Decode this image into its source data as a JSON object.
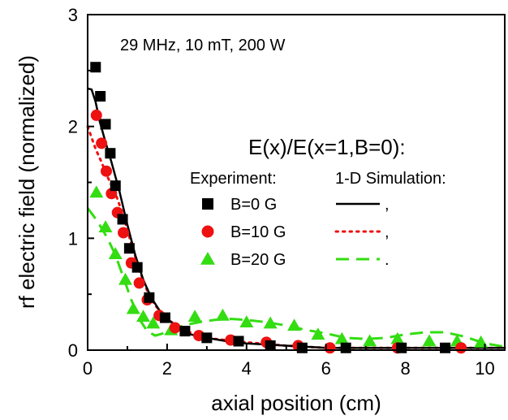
{
  "chart_data": {
    "type": "scatter",
    "xlabel": "axial position (cm)",
    "ylabel": "rf electric field (normalized)",
    "xlim": [
      0,
      10.5
    ],
    "ylim": [
      0,
      3
    ],
    "xticks": [
      0,
      2,
      4,
      6,
      8,
      10
    ],
    "yticks": [
      0,
      1,
      2,
      3
    ],
    "xtick_labels": [
      "0",
      "2",
      "4",
      "6",
      "8",
      "10"
    ],
    "ytick_labels": [
      "0",
      "1",
      "2",
      "3"
    ],
    "annotation": "29 MHz, 10 mT, 200 W",
    "legend_title": "E(x)/E(x=1,B=0):",
    "legend_experiment_header": "Experiment:",
    "legend_simulation_header": "1-D Simulation:",
    "legend_placement": "right",
    "grid": false,
    "series": [
      {
        "name": "B=0 G",
        "color": "#000000",
        "marker": "square",
        "line_style": "solid",
        "line_suffix": ",",
        "experiment": [
          [
            0.2,
            2.53
          ],
          [
            0.32,
            2.27
          ],
          [
            0.45,
            2.02
          ],
          [
            0.57,
            1.76
          ],
          [
            0.7,
            1.47
          ],
          [
            0.88,
            1.17
          ],
          [
            1.05,
            0.91
          ],
          [
            1.25,
            0.74
          ],
          [
            1.55,
            0.47
          ],
          [
            1.95,
            0.29
          ],
          [
            2.45,
            0.17
          ],
          [
            3.0,
            0.11
          ],
          [
            3.8,
            0.08
          ],
          [
            4.6,
            0.04
          ],
          [
            5.4,
            0.02
          ],
          [
            6.5,
            0.02
          ],
          [
            7.9,
            0.02
          ],
          [
            9.0,
            0.02
          ]
        ],
        "simulation": [
          [
            0,
            2.34
          ],
          [
            0.1,
            2.33
          ],
          [
            0.2,
            2.22
          ],
          [
            0.3,
            2.05
          ],
          [
            0.45,
            1.86
          ],
          [
            0.6,
            1.68
          ],
          [
            0.8,
            1.42
          ],
          [
            1.0,
            1.12
          ],
          [
            1.2,
            0.85
          ],
          [
            1.4,
            0.63
          ],
          [
            1.6,
            0.47
          ],
          [
            1.8,
            0.36
          ],
          [
            2.0,
            0.28
          ],
          [
            2.3,
            0.2
          ],
          [
            2.6,
            0.14
          ],
          [
            3.0,
            0.11
          ],
          [
            3.5,
            0.08
          ],
          [
            4.0,
            0.06
          ],
          [
            5.0,
            0.04
          ],
          [
            6.0,
            0.02
          ],
          [
            8.0,
            0.02
          ],
          [
            10.5,
            0.02
          ]
        ]
      },
      {
        "name": "B=10 G",
        "color": "#ee1111",
        "marker": "circle",
        "line_style": "dotted",
        "line_suffix": ",",
        "experiment": [
          [
            0.22,
            2.1
          ],
          [
            0.35,
            1.85
          ],
          [
            0.47,
            1.6
          ],
          [
            0.6,
            1.4
          ],
          [
            0.75,
            1.23
          ],
          [
            0.9,
            1.05
          ],
          [
            1.1,
            0.78
          ],
          [
            1.3,
            0.6
          ],
          [
            1.5,
            0.45
          ],
          [
            1.8,
            0.31
          ],
          [
            2.2,
            0.2
          ],
          [
            2.8,
            0.13
          ],
          [
            3.6,
            0.09
          ],
          [
            4.5,
            0.07
          ],
          [
            5.3,
            0.04
          ],
          [
            6.1,
            0.02
          ],
          [
            7.8,
            0.02
          ],
          [
            9.4,
            0.02
          ]
        ],
        "simulation": [
          [
            0,
            2.0
          ],
          [
            0.1,
            1.9
          ],
          [
            0.2,
            1.8
          ],
          [
            0.35,
            1.68
          ],
          [
            0.5,
            1.55
          ],
          [
            0.7,
            1.4
          ],
          [
            0.9,
            1.2
          ],
          [
            1.1,
            0.95
          ],
          [
            1.3,
            0.72
          ],
          [
            1.5,
            0.53
          ],
          [
            1.7,
            0.4
          ],
          [
            2.0,
            0.28
          ],
          [
            2.3,
            0.2
          ],
          [
            2.7,
            0.14
          ],
          [
            3.2,
            0.1
          ],
          [
            4.0,
            0.07
          ],
          [
            5.0,
            0.04
          ],
          [
            6.0,
            0.02
          ],
          [
            8.0,
            0.02
          ],
          [
            10.5,
            0.02
          ]
        ]
      },
      {
        "name": "B=20 G",
        "color": "#33dd11",
        "marker": "triangle",
        "line_style": "dashed",
        "line_suffix": ".",
        "experiment": [
          [
            0.22,
            1.41
          ],
          [
            0.45,
            1.1
          ],
          [
            0.7,
            0.86
          ],
          [
            0.95,
            0.63
          ],
          [
            1.15,
            0.37
          ],
          [
            1.4,
            0.3
          ],
          [
            1.65,
            0.24
          ],
          [
            2.1,
            0.18
          ],
          [
            2.7,
            0.3
          ],
          [
            3.4,
            0.31
          ],
          [
            4.0,
            0.25
          ],
          [
            4.6,
            0.24
          ],
          [
            5.2,
            0.22
          ],
          [
            5.8,
            0.14
          ],
          [
            6.4,
            0.1
          ],
          [
            7.1,
            0.08
          ],
          [
            7.8,
            0.1
          ],
          [
            8.6,
            0.08
          ],
          [
            9.3,
            0.08
          ],
          [
            9.9,
            0.07
          ]
        ],
        "simulation": [
          [
            0,
            1.27
          ],
          [
            0.15,
            1.2
          ],
          [
            0.3,
            1.12
          ],
          [
            0.5,
            1.0
          ],
          [
            0.7,
            0.85
          ],
          [
            0.9,
            0.65
          ],
          [
            1.1,
            0.45
          ],
          [
            1.3,
            0.28
          ],
          [
            1.5,
            0.17
          ],
          [
            1.7,
            0.13
          ],
          [
            2.0,
            0.16
          ],
          [
            2.4,
            0.22
          ],
          [
            2.8,
            0.25
          ],
          [
            3.2,
            0.27
          ],
          [
            3.6,
            0.28
          ],
          [
            4.0,
            0.27
          ],
          [
            4.5,
            0.25
          ],
          [
            5.0,
            0.22
          ],
          [
            5.5,
            0.18
          ],
          [
            6.0,
            0.15
          ],
          [
            6.5,
            0.11
          ],
          [
            7.0,
            0.1
          ],
          [
            7.5,
            0.11
          ],
          [
            8.0,
            0.14
          ],
          [
            8.5,
            0.16
          ],
          [
            9.0,
            0.16
          ],
          [
            9.5,
            0.12
          ],
          [
            10.0,
            0.06
          ],
          [
            10.5,
            0.03
          ]
        ]
      }
    ]
  }
}
